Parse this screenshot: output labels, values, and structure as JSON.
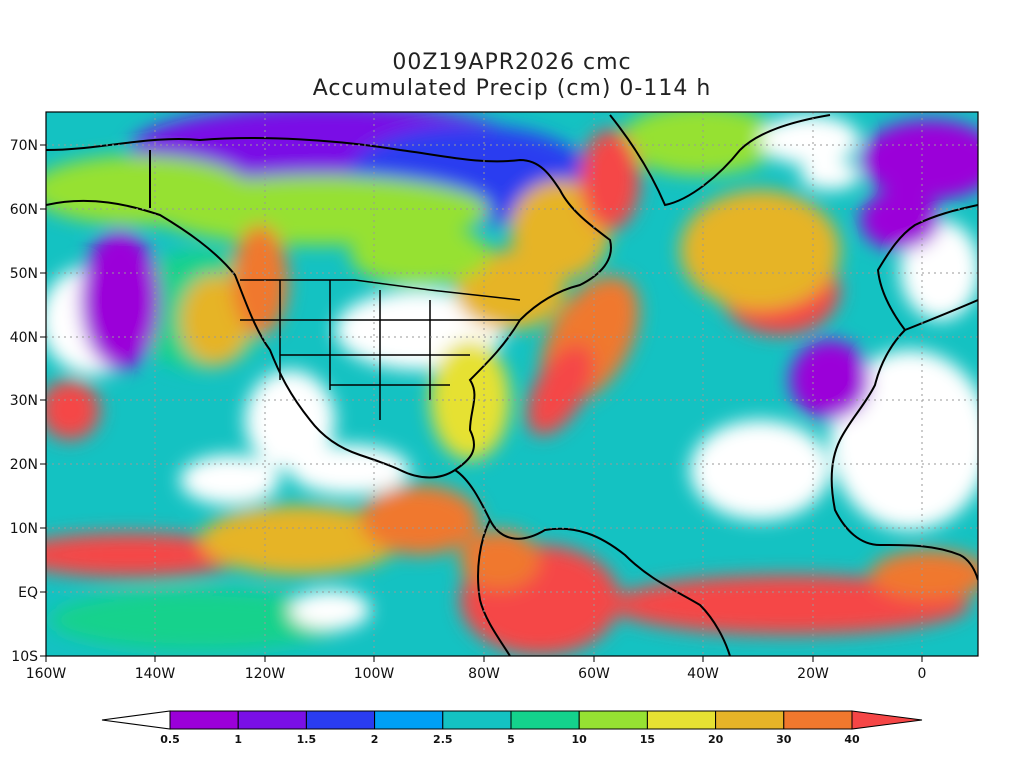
{
  "header": {
    "title_line1": "00Z19APR2026 cmc",
    "title_line2": "Accumulated Precip (cm) 0-114 h"
  },
  "axes": {
    "lon_ticks": [
      "160W",
      "140W",
      "120W",
      "100W",
      "80W",
      "60W",
      "40W",
      "20W",
      "0"
    ],
    "lat_ticks": [
      "70N",
      "60N",
      "50N",
      "40N",
      "30N",
      "20N",
      "10N",
      "EQ",
      "10S"
    ],
    "lon_range": [
      -160,
      10
    ],
    "lat_range": [
      -10,
      75
    ]
  },
  "colorbar": {
    "labels": [
      "0.5",
      "1",
      "1.5",
      "2",
      "2.5",
      "5",
      "10",
      "15",
      "20",
      "30",
      "40"
    ],
    "colors": [
      "#ffffff",
      "#9b00d9",
      "#7a10e6",
      "#2a3cf0",
      "#00a0f5",
      "#14c2c2",
      "#14d28c",
      "#96e132",
      "#e6e132",
      "#e6b428",
      "#f0782d",
      "#f54646"
    ]
  },
  "colors": {
    "land_outline": "#000000",
    "grid": "#999999"
  }
}
